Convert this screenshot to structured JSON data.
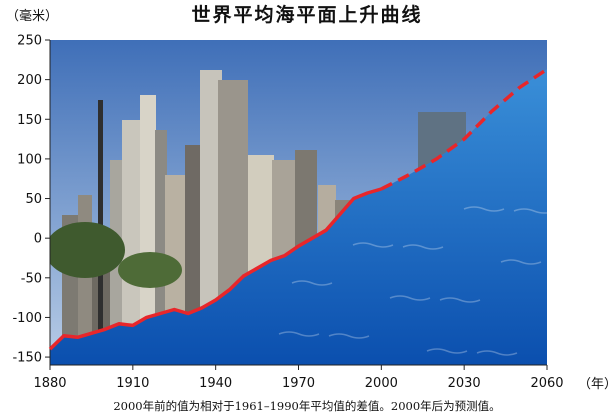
{
  "title": "世界平均海平面上升曲线",
  "caption": "2000年前的值为相对于1961–1990年平均值的差值。2000年后为预测值。",
  "colors": {
    "sky_top": "#3f6fb8",
    "sky_bottom": "#b9cde6",
    "water_top": "#3a8fd8",
    "water_bottom": "#0b4fae",
    "line": "#e8262a",
    "axis": "#222222"
  },
  "chart_data": {
    "type": "line",
    "title": "世界平均海平面上升曲线",
    "xlabel": "（年）",
    "ylabel": "（毫米）",
    "xlim": [
      1880,
      2060
    ],
    "ylim": [
      -160,
      250
    ],
    "x_ticks": [
      "1880",
      "1910",
      "1940",
      "1970",
      "2000",
      "2030",
      "2060"
    ],
    "y_ticks": [
      "-150",
      "-100",
      "-50",
      "0",
      "50",
      "100",
      "150",
      "200",
      "250"
    ],
    "grid": false,
    "series": [
      {
        "style": "solid",
        "x": [
          1880,
          1885,
          1890,
          1895,
          1900,
          1905,
          1910,
          1915,
          1920,
          1925,
          1930,
          1935,
          1940,
          1945,
          1950,
          1955,
          1960,
          1965,
          1970,
          1975,
          1980,
          1985,
          1990,
          1995,
          2000
        ],
        "y": [
          -140,
          -123,
          -125,
          -120,
          -115,
          -108,
          -110,
          -100,
          -95,
          -90,
          -95,
          -88,
          -78,
          -65,
          -48,
          -38,
          -28,
          -22,
          -10,
          0,
          10,
          30,
          50,
          57,
          62
        ]
      },
      {
        "style": "dashed",
        "x": [
          2000,
          2010,
          2020,
          2030,
          2040,
          2050,
          2060
        ],
        "y": [
          62,
          80,
          100,
          125,
          160,
          190,
          213
        ]
      }
    ]
  }
}
